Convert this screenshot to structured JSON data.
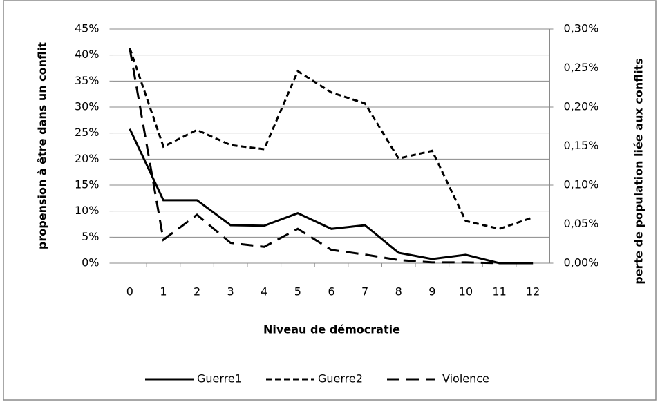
{
  "chart_data": {
    "type": "line",
    "x_label": "Niveau de démocratie",
    "y_label": "propension à être dans un conflit",
    "y2_label": "perte de population liée aux conflits",
    "categories": [
      "0",
      "1",
      "2",
      "3",
      "4",
      "5",
      "6",
      "7",
      "8",
      "9",
      "10",
      "11",
      "12"
    ],
    "ylim": [
      0,
      45
    ],
    "yticks": [
      {
        "value": 0,
        "label": "0%"
      },
      {
        "value": 5,
        "label": "5%"
      },
      {
        "value": 10,
        "label": "10%"
      },
      {
        "value": 15,
        "label": "15%"
      },
      {
        "value": 20,
        "label": "20%"
      },
      {
        "value": 25,
        "label": "25%"
      },
      {
        "value": 30,
        "label": "30%"
      },
      {
        "value": 35,
        "label": "35%"
      },
      {
        "value": 40,
        "label": "40%"
      },
      {
        "value": 45,
        "label": "45%"
      }
    ],
    "y2lim": [
      0,
      0.3
    ],
    "y2ticks": [
      {
        "value": 0,
        "label": "0,00%"
      },
      {
        "value": 0.05,
        "label": "0,05%"
      },
      {
        "value": 0.1,
        "label": "0,10%"
      },
      {
        "value": 0.15,
        "label": "0,15%"
      },
      {
        "value": 0.2,
        "label": "0,20%"
      },
      {
        "value": 0.25,
        "label": "0,25%"
      },
      {
        "value": 0.3,
        "label": "0,30%"
      }
    ],
    "grid": true,
    "legend": "bottom",
    "series": [
      {
        "name": "Guerre1",
        "color": "#000000",
        "dash": "solid",
        "values": [
          25.8,
          12.1,
          12.1,
          7.3,
          7.2,
          9.6,
          6.6,
          7.3,
          2.0,
          0.8,
          1.6,
          0,
          0
        ]
      },
      {
        "name": "Guerre2",
        "color": "#000000",
        "dash": "short",
        "values": [
          41.3,
          22.4,
          25.6,
          22.7,
          21.9,
          36.9,
          32.8,
          30.7,
          20.1,
          21.6,
          8.1,
          6.6,
          8.8
        ]
      },
      {
        "name": "Violence",
        "color": "#000000",
        "dash": "long",
        "axis": "y2",
        "values": [
          0.275,
          0.03,
          0.062,
          0.026,
          0.021,
          0.044,
          0.017,
          0.011,
          0.004,
          0.001,
          0.001,
          0,
          0
        ]
      }
    ]
  }
}
